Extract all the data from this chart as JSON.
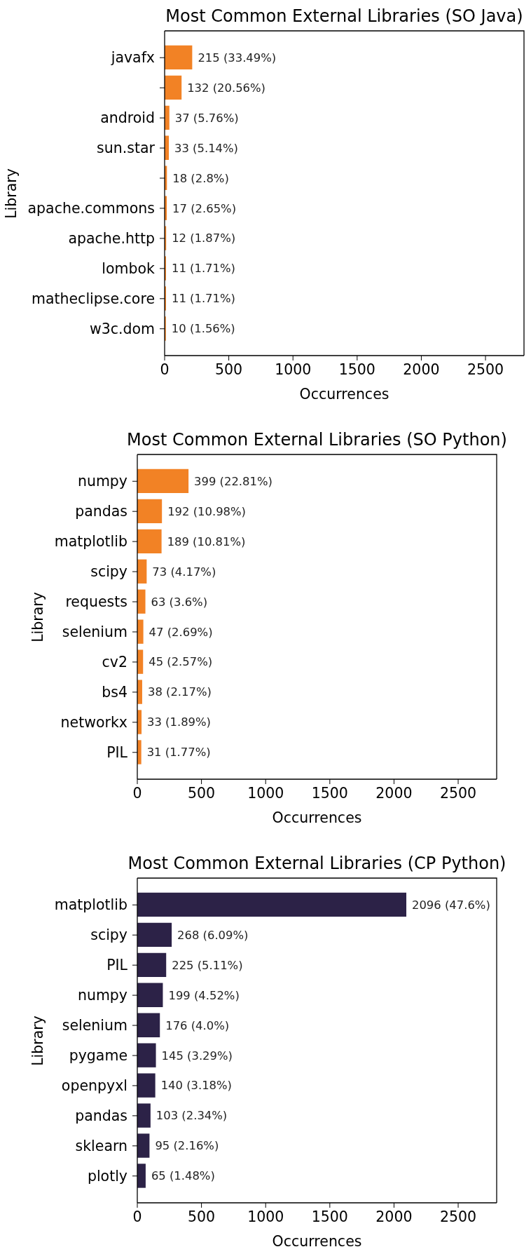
{
  "chart_data": [
    {
      "type": "bar",
      "orientation": "horizontal",
      "title": "Most Common External Libraries (SO Java)",
      "xlabel": "Occurrences",
      "ylabel": "Library",
      "categories": [
        "javafx",
        null,
        "android",
        "sun.star",
        null,
        "apache.commons",
        "apache.http",
        "lombok",
        "matheclipse.core",
        "w3c.dom"
      ],
      "values": [
        215,
        132,
        37,
        33,
        18,
        17,
        12,
        11,
        11,
        10
      ],
      "value_labels": [
        "215 (33.49%)",
        "132 (20.56%)",
        "37 (5.76%)",
        "33 (5.14%)",
        "18 (2.8%)",
        "17 (2.65%)",
        "12 (1.87%)",
        "11 (1.71%)",
        "11 (1.71%)",
        "10 (1.56%)"
      ],
      "color": "#f28225",
      "xlim": [
        0,
        2800
      ],
      "xticks": [
        0,
        500,
        1000,
        1500,
        2000,
        2500
      ]
    },
    {
      "type": "bar",
      "orientation": "horizontal",
      "title": "Most Common External Libraries (SO Python)",
      "xlabel": "Occurrences",
      "ylabel": "Library",
      "categories": [
        "numpy",
        "pandas",
        "matplotlib",
        "scipy",
        "requests",
        "selenium",
        "cv2",
        "bs4",
        "networkx",
        "PIL"
      ],
      "values": [
        399,
        192,
        189,
        73,
        63,
        47,
        45,
        38,
        33,
        31
      ],
      "value_labels": [
        "399 (22.81%)",
        "192 (10.98%)",
        "189 (10.81%)",
        "73 (4.17%)",
        "63 (3.6%)",
        "47 (2.69%)",
        "45 (2.57%)",
        "38 (2.17%)",
        "33 (1.89%)",
        "31 (1.77%)"
      ],
      "color": "#f28225",
      "xlim": [
        0,
        2800
      ],
      "xticks": [
        0,
        500,
        1000,
        1500,
        2000,
        2500
      ]
    },
    {
      "type": "bar",
      "orientation": "horizontal",
      "title": "Most Common External Libraries (CP Python)",
      "xlabel": "Occurrences",
      "ylabel": "Library",
      "categories": [
        "matplotlib",
        "scipy",
        "PIL",
        "numpy",
        "selenium",
        "pygame",
        "openpyxl",
        "pandas",
        "sklearn",
        "plotly"
      ],
      "values": [
        2096,
        268,
        225,
        199,
        176,
        145,
        140,
        103,
        95,
        65
      ],
      "value_labels": [
        "2096 (47.6%)",
        "268 (6.09%)",
        "225 (5.11%)",
        "199 (4.52%)",
        "176 (4.0%)",
        "145 (3.29%)",
        "140 (3.18%)",
        "103 (2.34%)",
        "95 (2.16%)",
        "65 (1.48%)"
      ],
      "color": "#2c2247",
      "xlim": [
        0,
        2800
      ],
      "xticks": [
        0,
        500,
        1000,
        1500,
        2000,
        2500
      ]
    }
  ]
}
